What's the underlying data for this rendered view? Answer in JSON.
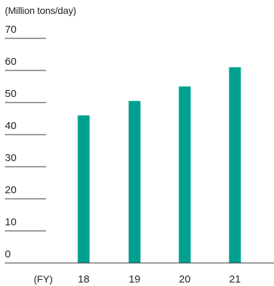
{
  "chart_data": {
    "type": "bar",
    "unit_label": "(Million tons/day)",
    "x_prefix_label": "(FY)",
    "categories": [
      "18",
      "19",
      "20",
      "21"
    ],
    "series": [
      {
        "values": [
          46,
          50.5,
          55,
          61
        ]
      }
    ],
    "ylim": [
      0,
      70
    ],
    "y_ticks": [
      0,
      10,
      20,
      30,
      40,
      50,
      60,
      70
    ],
    "grid": false,
    "legend": "none",
    "colors": {
      "bar": "#00A090",
      "tick_line": "#333333",
      "text": "#222222"
    }
  }
}
